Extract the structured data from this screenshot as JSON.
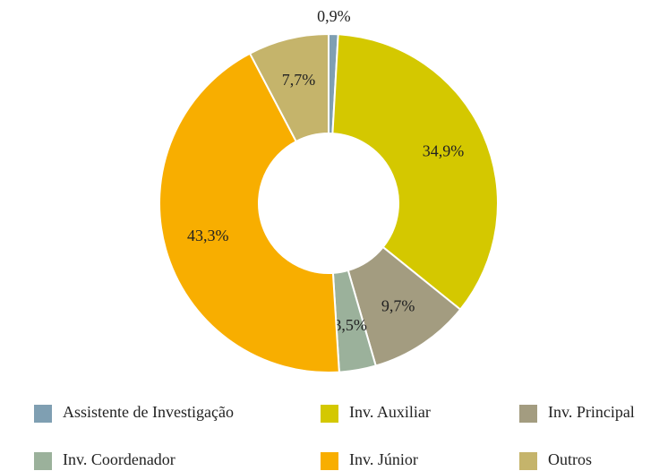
{
  "chart_data": {
    "type": "donut",
    "categories": [
      "Assistente de Investigação",
      "Inv. Auxiliar",
      "Inv. Principal",
      "Inv. Coordenador",
      "Inv. Júnior",
      "Outros"
    ],
    "values": [
      0.9,
      34.9,
      9.7,
      3.5,
      43.3,
      7.7
    ],
    "value_labels": [
      "0,9%",
      "34,9%",
      "9,7%",
      "3,5%",
      "43,3%",
      "7,7%"
    ],
    "colors": [
      "#7f9fb2",
      "#d4c800",
      "#a39c80",
      "#9bb19b",
      "#f8ae00",
      "#c5b46b"
    ],
    "legend": "bottom"
  }
}
